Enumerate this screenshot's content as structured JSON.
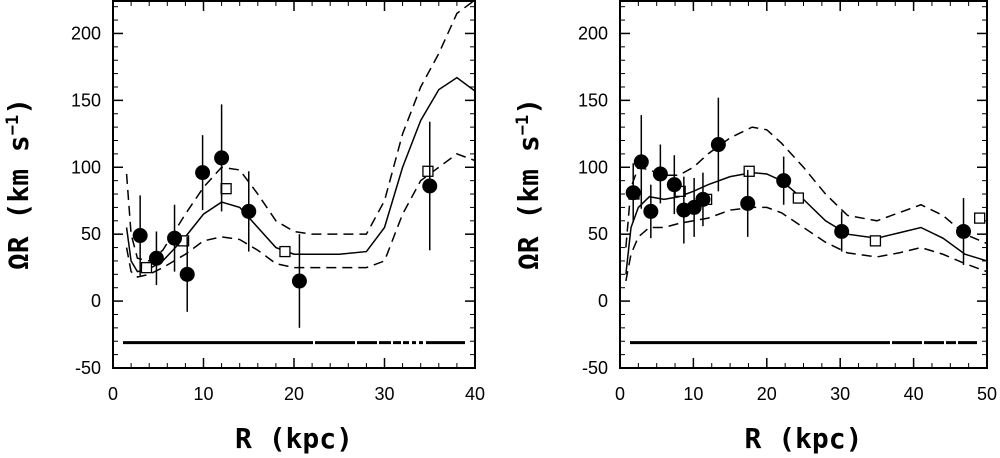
{
  "chart_data": [
    {
      "type": "scatter",
      "title": "",
      "xlabel": "R (kpc)",
      "ylabel": "ΩR (km s",
      "ylabel_sup": "−1",
      "ylabel_close": ")",
      "xlim": [
        0,
        40
      ],
      "ylim": [
        -50,
        225
      ],
      "xticks": [
        "0",
        "10",
        "20",
        "30",
        "40"
      ],
      "yticks": [
        "-50",
        "0",
        "50",
        "100",
        "150",
        "200"
      ],
      "grid": false,
      "filled_points": [
        {
          "x": 3.0,
          "y": 49,
          "err": 30
        },
        {
          "x": 4.8,
          "y": 32,
          "err": 20
        },
        {
          "x": 6.8,
          "y": 47,
          "err": 25
        },
        {
          "x": 8.2,
          "y": 20,
          "err": 28
        },
        {
          "x": 9.9,
          "y": 96,
          "err": 28
        },
        {
          "x": 12.0,
          "y": 107,
          "err": 40
        },
        {
          "x": 15.0,
          "y": 67,
          "err": 30
        },
        {
          "x": 20.6,
          "y": 15,
          "err": 35
        },
        {
          "x": 35.0,
          "y": 86,
          "err": 48
        }
      ],
      "open_squares": [
        {
          "x": 3.7,
          "y": 25
        },
        {
          "x": 7.8,
          "y": 45
        },
        {
          "x": 12.5,
          "y": 84
        },
        {
          "x": 19.0,
          "y": 37
        },
        {
          "x": 34.8,
          "y": 97
        }
      ],
      "model_curve": {
        "x": [
          1.5,
          2,
          2.7,
          4,
          5.5,
          8,
          10,
          12,
          14,
          16,
          18,
          20,
          22,
          25,
          28,
          30,
          32,
          34,
          36,
          38,
          40
        ],
        "y": [
          55,
          30,
          22,
          24,
          30,
          48,
          65,
          74,
          70,
          55,
          40,
          35,
          35,
          35,
          37,
          55,
          100,
          135,
          158,
          167,
          157
        ]
      },
      "upper_curve": {
        "x": [
          1.5,
          2,
          2.7,
          4,
          5.5,
          8,
          10,
          12,
          14,
          16,
          18,
          20,
          22,
          25,
          28,
          30,
          32,
          34,
          36,
          38,
          40
        ],
        "y": [
          95,
          50,
          32,
          30,
          38,
          65,
          85,
          100,
          98,
          80,
          60,
          52,
          50,
          50,
          50,
          75,
          125,
          160,
          185,
          215,
          225
        ]
      },
      "lower_curve": {
        "x": [
          1.5,
          2,
          2.7,
          4,
          5.5,
          8,
          10,
          12,
          14,
          16,
          18,
          20,
          22,
          25,
          28,
          30,
          32,
          34,
          36,
          38,
          40
        ],
        "y": [
          40,
          22,
          18,
          20,
          25,
          35,
          45,
          48,
          46,
          38,
          28,
          25,
          25,
          25,
          25,
          30,
          65,
          90,
          100,
          110,
          105
        ]
      },
      "baseline_y": -31
    },
    {
      "type": "scatter",
      "title": "",
      "xlabel": "R (kpc)",
      "ylabel": "ΩR (km s",
      "ylabel_sup": "−1",
      "ylabel_close": ")",
      "xlim": [
        0,
        50
      ],
      "ylim": [
        -50,
        225
      ],
      "xticks": [
        "0",
        "10",
        "20",
        "30",
        "40",
        "50"
      ],
      "yticks": [
        "-50",
        "0",
        "50",
        "100",
        "150",
        "200"
      ],
      "grid": false,
      "filled_points": [
        {
          "x": 1.8,
          "y": 81,
          "err": 22
        },
        {
          "x": 2.9,
          "y": 104,
          "err": 35
        },
        {
          "x": 4.2,
          "y": 67,
          "err": 20
        },
        {
          "x": 5.5,
          "y": 95,
          "err": 22
        },
        {
          "x": 7.4,
          "y": 87,
          "err": 22
        },
        {
          "x": 8.7,
          "y": 68,
          "err": 25
        },
        {
          "x": 10.1,
          "y": 70,
          "err": 22
        },
        {
          "x": 11.3,
          "y": 76,
          "err": 20
        },
        {
          "x": 13.4,
          "y": 117,
          "err": 35
        },
        {
          "x": 17.4,
          "y": 73,
          "err": 25
        },
        {
          "x": 22.3,
          "y": 90,
          "err": 18
        },
        {
          "x": 30.2,
          "y": 52,
          "err": 15
        },
        {
          "x": 46.8,
          "y": 52,
          "err": 25
        }
      ],
      "open_squares": [
        {
          "x": 1.9,
          "y": 80
        },
        {
          "x": 8.2,
          "y": 82
        },
        {
          "x": 11.8,
          "y": 76
        },
        {
          "x": 17.6,
          "y": 97
        },
        {
          "x": 24.3,
          "y": 77
        },
        {
          "x": 34.8,
          "y": 45
        },
        {
          "x": 49.0,
          "y": 62
        }
      ],
      "model_curve": {
        "x": [
          0.8,
          1.5,
          2.5,
          4,
          6,
          8,
          10,
          12,
          15,
          18,
          20,
          22,
          25,
          28,
          31,
          35,
          38,
          41,
          44,
          47,
          50
        ],
        "y": [
          20,
          55,
          70,
          78,
          76,
          78,
          82,
          87,
          93,
          96,
          95,
          90,
          76,
          60,
          50,
          47,
          51,
          55,
          47,
          35,
          30
        ]
      },
      "upper_curve": {
        "x": [
          0.8,
          1.5,
          2.5,
          4,
          6,
          8,
          10,
          12,
          15,
          18,
          20,
          22,
          25,
          28,
          31,
          35,
          38,
          41,
          44,
          47,
          50
        ],
        "y": [
          40,
          85,
          100,
          98,
          94,
          94,
          100,
          110,
          122,
          130,
          128,
          118,
          100,
          80,
          64,
          60,
          66,
          72,
          64,
          50,
          43
        ]
      },
      "lower_curve": {
        "x": [
          0.8,
          1.5,
          2.5,
          4,
          6,
          8,
          10,
          12,
          15,
          18,
          20,
          22,
          25,
          28,
          31,
          35,
          38,
          41,
          44,
          47,
          50
        ],
        "y": [
          15,
          35,
          48,
          55,
          55,
          58,
          60,
          62,
          68,
          70,
          70,
          66,
          55,
          44,
          36,
          33,
          36,
          40,
          35,
          28,
          22
        ]
      },
      "baseline_y": -31
    }
  ]
}
